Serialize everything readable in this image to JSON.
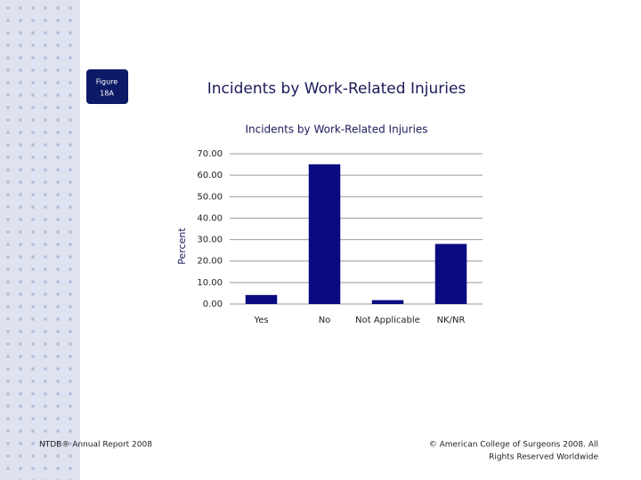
{
  "figure_label": [
    "Figure",
    "18A"
  ],
  "slide_title": "Incidents by Work-Related Injuries",
  "footer_left": "NTDB® Annual Report 2008",
  "footer_right": [
    "© American College of Surgeons 2008.  All",
    "Rights Reserved Worldwide"
  ],
  "chart_data": {
    "type": "bar",
    "title": "Incidents by Work-Related Injuries",
    "ylabel": "Percent",
    "categories": [
      "Yes",
      "No",
      "Not Applicable",
      "NK/NR"
    ],
    "values": [
      4.2,
      65.1,
      1.8,
      28.0
    ],
    "color": "#0a0a80",
    "ylim": [
      0,
      70
    ],
    "yticks": [
      {
        "value": 0,
        "label": "0.00"
      },
      {
        "value": 10,
        "label": "10.00"
      },
      {
        "value": 20,
        "label": "20.00"
      },
      {
        "value": 30,
        "label": "30.00"
      },
      {
        "value": 40,
        "label": "40.00"
      },
      {
        "value": 50,
        "label": "50.00"
      },
      {
        "value": 60,
        "label": "60.00"
      },
      {
        "value": 70,
        "label": "70.00"
      }
    ],
    "grid": true
  }
}
